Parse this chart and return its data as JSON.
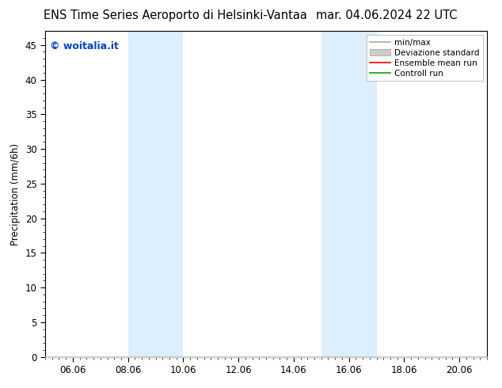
{
  "title_left": "ENS Time Series Aeroporto di Helsinki-Vantaa",
  "title_right": "mar. 04.06.2024 22 UTC",
  "ylabel": "Precipitation (mm/6h)",
  "watermark": "© woitalia.it",
  "watermark_color": "#0044cc",
  "ylim": [
    0,
    47
  ],
  "yticks": [
    0,
    5,
    10,
    15,
    20,
    25,
    30,
    35,
    40,
    45
  ],
  "xtick_labels": [
    "06.06",
    "08.06",
    "10.06",
    "12.06",
    "14.06",
    "16.06",
    "18.06",
    "20.06"
  ],
  "xtick_positions": [
    1,
    3,
    5,
    7,
    9,
    11,
    13,
    15
  ],
  "x_min": 0,
  "x_max": 16,
  "shaded_bands": [
    {
      "x_start": 3,
      "x_end": 5
    },
    {
      "x_start": 10,
      "x_end": 12
    }
  ],
  "band_color": "#ddeeff",
  "bg_color": "#ffffff",
  "border_color": "#000000",
  "title_fontsize": 10.5,
  "tick_fontsize": 8.5,
  "ylabel_fontsize": 8.5,
  "watermark_fontsize": 9,
  "legend_fontsize": 7.5
}
